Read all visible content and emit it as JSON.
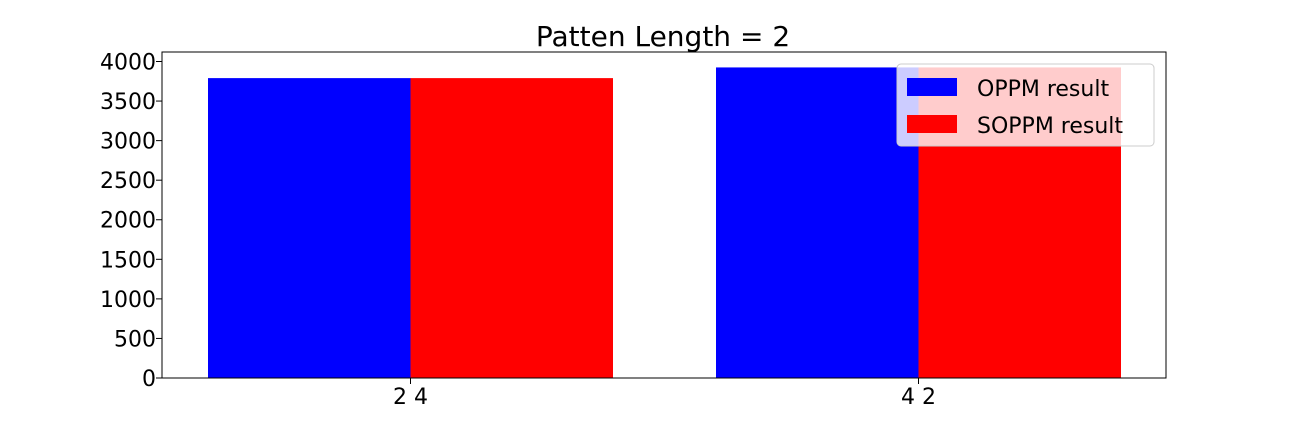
{
  "chart_data": {
    "type": "bar",
    "title": "Patten Length = 2",
    "xlabel": "",
    "ylabel": "",
    "categories": [
      "2 4",
      "4 2"
    ],
    "series": [
      {
        "name": "OPPM result",
        "values": [
          3790,
          3925
        ],
        "color": "#0000ff"
      },
      {
        "name": "SOPPM result",
        "values": [
          3790,
          3925
        ],
        "color": "#ff0000"
      }
    ],
    "ylim": [
      0,
      4120
    ],
    "yticks": [
      0,
      500,
      1000,
      1500,
      2000,
      2500,
      3000,
      3500,
      4000
    ],
    "grid": false,
    "legend_position": "top-right"
  }
}
